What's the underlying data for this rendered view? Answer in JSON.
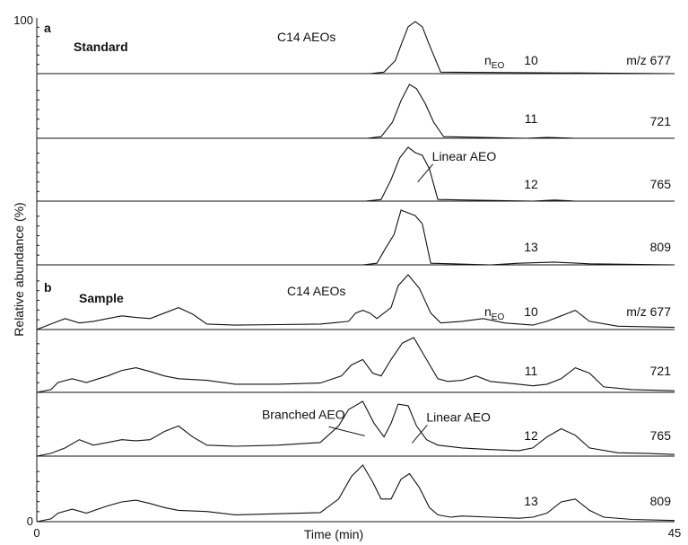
{
  "chart_data": {
    "type": "line",
    "xlabel": "Time (min)",
    "ylabel": "Relative abundance (%)",
    "xlim": [
      0,
      45
    ],
    "ylim": [
      0,
      100
    ],
    "x_ticks": [
      "0",
      "45"
    ],
    "y_ticks": [
      "100",
      "0"
    ],
    "grid": false,
    "sections": [
      {
        "letter": "a",
        "title": "Standard",
        "series_title": "C14 AEOs",
        "panels": [
          {
            "neo": "10",
            "mz": "677",
            "x": [
              0,
              23.5,
              24.5,
              25.3,
              25.7,
              26.2,
              26.7,
              27.2,
              27.7,
              28.5,
              45
            ],
            "y": [
              0,
              0,
              3,
              25,
              55,
              90,
              100,
              90,
              55,
              3,
              0
            ]
          },
          {
            "neo": "11",
            "mz": "721",
            "x": [
              0,
              23.3,
              24.3,
              25.1,
              25.7,
              26.3,
              26.8,
              27.4,
              28.0,
              28.7,
              34.5,
              36,
              38,
              45
            ],
            "y": [
              0,
              0,
              3,
              30,
              70,
              100,
              92,
              65,
              30,
              3,
              0,
              1.5,
              0,
              0
            ]
          },
          {
            "neo": "12",
            "mz": "765",
            "x": [
              0,
              23.2,
              24.3,
              25.0,
              25.6,
              26.2,
              26.7,
              27.2,
              27.7,
              28.3,
              35,
              36.5,
              38,
              45
            ],
            "y": [
              0,
              0,
              3,
              40,
              80,
              100,
              90,
              85,
              60,
              3,
              0,
              2,
              0,
              0
            ]
          },
          {
            "neo": "13",
            "mz": "809",
            "x": [
              0,
              23.0,
              24.0,
              24.6,
              25.2,
              25.7,
              26.2,
              26.7,
              27.2,
              27.8,
              32,
              34,
              36.5,
              39,
              45
            ],
            "y": [
              0,
              0,
              3,
              30,
              55,
              100,
              95,
              90,
              75,
              3,
              0,
              3,
              5,
              2,
              0
            ]
          }
        ]
      },
      {
        "letter": "b",
        "title": "Sample",
        "series_title": "C14 AEOs",
        "panels": [
          {
            "neo": "10",
            "mz": "677",
            "x": [
              0,
              1,
              2,
              3,
              4,
              5,
              6,
              7,
              8,
              9,
              10,
              11,
              12,
              14,
              17,
              20,
              22,
              22.5,
              23,
              23.5,
              24,
              25,
              25.5,
              26.2,
              27,
              27.8,
              28.5,
              30,
              31.5,
              33,
              35,
              36,
              37,
              38,
              39,
              41,
              43,
              45
            ],
            "y": [
              0,
              10,
              20,
              12,
              15,
              20,
              25,
              22,
              20,
              30,
              40,
              28,
              10,
              8,
              9,
              10,
              15,
              30,
              35,
              30,
              20,
              40,
              80,
              100,
              75,
              30,
              12,
              15,
              20,
              12,
              8,
              15,
              25,
              35,
              15,
              6,
              5,
              4
            ]
          },
          {
            "neo": "11",
            "mz": "721",
            "x": [
              0,
              1,
              1.5,
              2.5,
              3.5,
              5,
              6,
              7,
              8,
              9,
              10,
              12,
              14,
              17,
              20,
              21.5,
              22.2,
              23,
              23.7,
              24.3,
              25,
              25.8,
              26.6,
              27.5,
              28.3,
              29,
              30,
              31,
              32,
              34,
              35,
              36,
              37,
              38,
              39,
              40,
              42,
              45
            ],
            "y": [
              0,
              5,
              18,
              25,
              18,
              30,
              40,
              45,
              38,
              30,
              25,
              22,
              15,
              15,
              17,
              30,
              50,
              60,
              35,
              30,
              60,
              90,
              100,
              60,
              25,
              20,
              22,
              30,
              20,
              15,
              12,
              15,
              25,
              45,
              35,
              10,
              5,
              3
            ]
          },
          {
            "neo": "12",
            "mz": "765",
            "x": [
              0,
              1,
              2,
              3,
              4,
              5,
              6,
              7,
              8,
              9,
              10,
              11,
              12,
              14,
              17,
              20,
              21.3,
              22,
              23,
              23.8,
              24.5,
              25,
              25.5,
              26.2,
              26.8,
              27.5,
              28.3,
              30,
              32,
              34,
              35,
              36,
              37,
              38,
              39,
              41,
              43,
              45
            ],
            "y": [
              0,
              5,
              15,
              30,
              20,
              25,
              30,
              28,
              30,
              45,
              55,
              35,
              20,
              18,
              20,
              25,
              55,
              85,
              100,
              60,
              35,
              60,
              95,
              92,
              55,
              30,
              20,
              15,
              12,
              10,
              15,
              35,
              50,
              38,
              15,
              6,
              5,
              3
            ]
          },
          {
            "neo": "13",
            "mz": "809",
            "x": [
              0,
              1,
              1.5,
              2.5,
              3.5,
              5,
              6,
              7,
              8,
              9,
              10,
              12,
              14,
              17,
              20,
              21.3,
              22.2,
              23,
              23.7,
              24.3,
              25,
              25.7,
              26.3,
              27,
              27.7,
              28.3,
              29.2,
              30,
              32,
              34,
              35,
              36,
              37,
              38,
              39,
              40,
              42,
              45
            ],
            "y": [
              0,
              5,
              15,
              22,
              15,
              28,
              35,
              38,
              32,
              25,
              20,
              18,
              12,
              14,
              16,
              40,
              80,
              100,
              70,
              40,
              40,
              75,
              85,
              60,
              25,
              12,
              8,
              10,
              8,
              6,
              8,
              15,
              35,
              40,
              20,
              8,
              4,
              2
            ]
          }
        ]
      }
    ],
    "annotations": [
      {
        "text": "Linear AEO",
        "section": 0,
        "panel": 2,
        "x": 27.7,
        "y": 72
      },
      {
        "text": "Branched AEO",
        "section": 1,
        "panel": 2,
        "x": 22.0,
        "y": 60
      },
      {
        "text": "Linear AEO",
        "section": 1,
        "panel": 2,
        "x": 27.3,
        "y": 60
      }
    ],
    "neo_prefix_main": "n",
    "neo_prefix_sub": "EO",
    "mz_prefix": "m/z"
  }
}
